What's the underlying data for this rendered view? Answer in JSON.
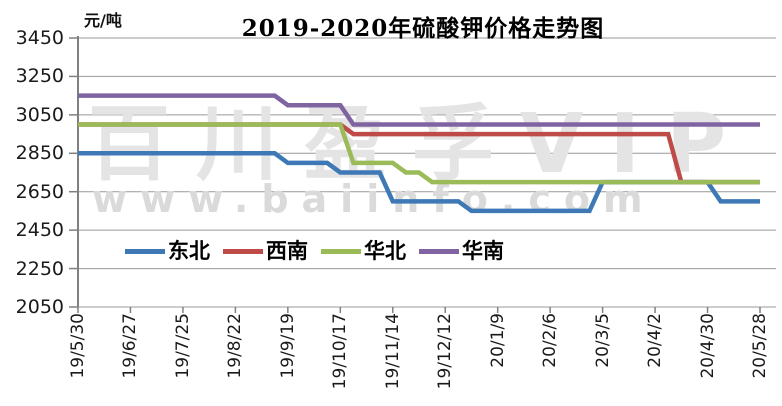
{
  "watermark": {
    "line1": "百川盈孚VIP",
    "line2": "www.baiinfo.com"
  },
  "chart_data": {
    "type": "line",
    "title": "2019-2020年硫酸钾价格走势图",
    "ylabel": "元/吨",
    "xlabel": "",
    "ylim": [
      2050,
      3450
    ],
    "y_ticks": [
      3450,
      3250,
      3050,
      2850,
      2650,
      2450,
      2250,
      2050
    ],
    "x_tick_labels": [
      "19/5/30",
      "19/6/27",
      "19/7/25",
      "19/8/22",
      "19/9/19",
      "19/10/17",
      "19/11/14",
      "19/12/12",
      "20/1/9",
      "20/2/6",
      "20/3/5",
      "20/4/2",
      "20/4/30",
      "20/5/28"
    ],
    "x_weeks_total": 53,
    "x_ticks_every_n_weeks": 4,
    "grid": "horizontal",
    "legend_position": "inside-bottom",
    "series": [
      {
        "name": "东北",
        "color": "#3E79B6",
        "segments": [
          {
            "from": 0,
            "to": 15,
            "from_date": "19/5/30",
            "to_date": "19/9/12",
            "value": 2850
          },
          {
            "from": 16,
            "to": 19,
            "from_date": "19/9/19",
            "to_date": "19/10/10",
            "value": 2800
          },
          {
            "from": 20,
            "to": 23,
            "from_date": "19/10/17",
            "to_date": "19/11/7",
            "value": 2750
          },
          {
            "from": 24,
            "to": 29,
            "from_date": "19/11/14",
            "to_date": "19/12/19",
            "value": 2600
          },
          {
            "from": 30,
            "to": 39,
            "from_date": "19/12/26",
            "to_date": "20/2/27",
            "value": 2550
          },
          {
            "from": 40,
            "to": 48,
            "from_date": "20/3/5",
            "to_date": "20/4/30",
            "value": 2700
          },
          {
            "from": 49,
            "to": 52,
            "from_date": "20/5/7",
            "to_date": "20/5/28",
            "value": 2600
          }
        ]
      },
      {
        "name": "西南",
        "color": "#BE4B48",
        "segments": [
          {
            "from": 0,
            "to": 20,
            "from_date": "19/5/30",
            "to_date": "19/10/17",
            "value": 3000
          },
          {
            "from": 21,
            "to": 45,
            "from_date": "19/10/24",
            "to_date": "20/4/9",
            "value": 2950
          },
          {
            "from": 46,
            "to": 52,
            "from_date": "20/4/16",
            "to_date": "20/5/28",
            "value": 2700
          }
        ]
      },
      {
        "name": "华北",
        "color": "#9BBB59",
        "segments": [
          {
            "from": 0,
            "to": 20,
            "from_date": "19/5/30",
            "to_date": "19/10/17",
            "value": 3000
          },
          {
            "from": 21,
            "to": 24,
            "from_date": "19/10/24",
            "to_date": "19/11/14",
            "value": 2800
          },
          {
            "from": 25,
            "to": 26,
            "from_date": "19/11/21",
            "to_date": "19/11/28",
            "value": 2750
          },
          {
            "from": 27,
            "to": 52,
            "from_date": "19/12/5",
            "to_date": "20/5/28",
            "value": 2700
          }
        ]
      },
      {
        "name": "华南",
        "color": "#8064A2",
        "segments": [
          {
            "from": 0,
            "to": 15,
            "from_date": "19/5/30",
            "to_date": "19/9/12",
            "value": 3150
          },
          {
            "from": 16,
            "to": 20,
            "from_date": "19/9/19",
            "to_date": "19/10/17",
            "value": 3100
          },
          {
            "from": 21,
            "to": 52,
            "from_date": "19/10/24",
            "to_date": "20/5/28",
            "value": 3000
          }
        ]
      }
    ]
  }
}
